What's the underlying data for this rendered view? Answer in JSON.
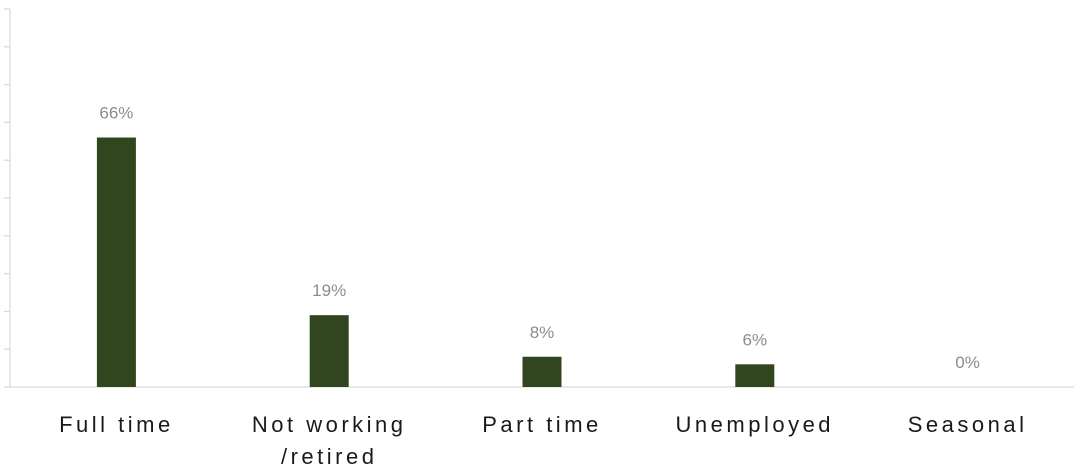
{
  "chart_data": {
    "type": "bar",
    "title": "",
    "xlabel": "",
    "ylabel": "",
    "categories": [
      [
        "Full time"
      ],
      [
        "Not working",
        "/retired"
      ],
      [
        "Part time"
      ],
      [
        "Unemployed"
      ],
      [
        "Seasonal"
      ]
    ],
    "values": [
      66,
      19,
      8,
      6,
      0
    ],
    "data_labels": [
      "66%",
      "19%",
      "8%",
      "6%",
      "0%"
    ],
    "value_unit": "%",
    "ylim": [
      0,
      100
    ],
    "ytick_step": 10,
    "ytick_labels_shown": false,
    "grid": false,
    "legend": "none",
    "bar_color": "#31461f",
    "axis_color": "#d9d9d9",
    "label_color": "#8c8c8c",
    "category_label_color": "#1a1a1a"
  }
}
